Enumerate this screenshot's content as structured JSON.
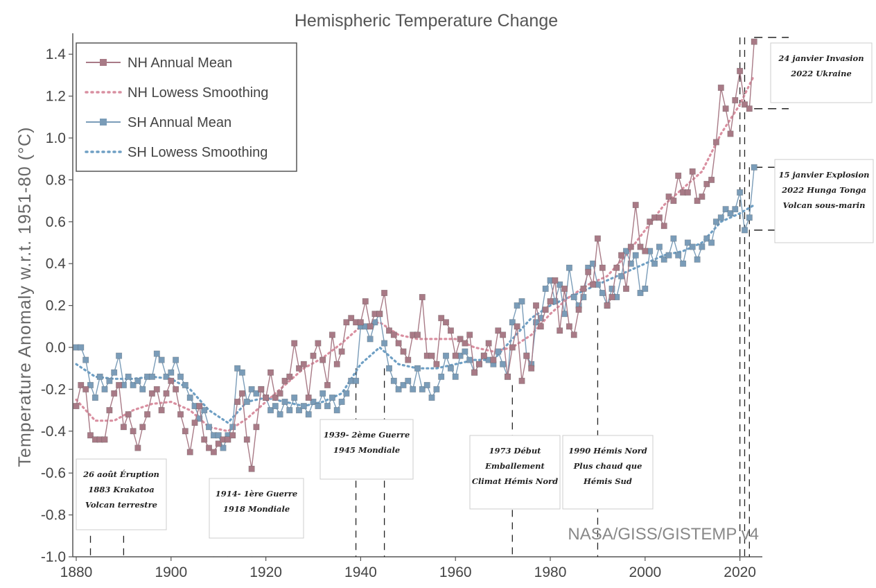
{
  "chart_data": {
    "type": "line",
    "title": "Hemispheric Temperature Change",
    "xlabel": "",
    "ylabel": "Temperature Anomaly w.r.t. 1951-80 (°C)",
    "xlim": [
      1880,
      2024
    ],
    "ylim": [
      -1.0,
      1.5
    ],
    "x_ticks": [
      "1880",
      "1900",
      "1920",
      "1940",
      "1960",
      "1980",
      "2000",
      "2020"
    ],
    "y_ticks": [
      "-1.0",
      "-0.8",
      "-0.6",
      "-0.4",
      "-0.2",
      "0.0",
      "0.2",
      "0.4",
      "0.6",
      "0.8",
      "1.0",
      "1.2",
      "1.4"
    ],
    "legend_position": "top-left",
    "credit": "NASA/GISS/GISTEMP v4",
    "series": [
      {
        "name": "NH Annual Mean",
        "color": "#a87a86",
        "style": "line-squares",
        "x": [
          1880,
          1881,
          1882,
          1883,
          1884,
          1885,
          1886,
          1887,
          1888,
          1889,
          1890,
          1891,
          1892,
          1893,
          1894,
          1895,
          1896,
          1897,
          1898,
          1899,
          1900,
          1901,
          1902,
          1903,
          1904,
          1905,
          1906,
          1907,
          1908,
          1909,
          1910,
          1911,
          1912,
          1913,
          1914,
          1915,
          1916,
          1917,
          1918,
          1919,
          1920,
          1921,
          1922,
          1923,
          1924,
          1925,
          1926,
          1927,
          1928,
          1929,
          1930,
          1931,
          1932,
          1933,
          1934,
          1935,
          1936,
          1937,
          1938,
          1939,
          1940,
          1941,
          1942,
          1943,
          1944,
          1945,
          1946,
          1947,
          1948,
          1949,
          1950,
          1951,
          1952,
          1953,
          1954,
          1955,
          1956,
          1957,
          1958,
          1959,
          1960,
          1961,
          1962,
          1963,
          1964,
          1965,
          1966,
          1967,
          1968,
          1969,
          1970,
          1971,
          1972,
          1973,
          1974,
          1975,
          1976,
          1977,
          1978,
          1979,
          1980,
          1981,
          1982,
          1983,
          1984,
          1985,
          1986,
          1987,
          1988,
          1989,
          1990,
          1991,
          1992,
          1993,
          1994,
          1995,
          1996,
          1997,
          1998,
          1999,
          2000,
          2001,
          2002,
          2003,
          2004,
          2005,
          2006,
          2007,
          2008,
          2009,
          2010,
          2011,
          2012,
          2013,
          2014,
          2015,
          2016,
          2017,
          2018,
          2019,
          2020,
          2021,
          2022,
          2023
        ],
        "values": [
          -0.28,
          -0.18,
          -0.2,
          -0.42,
          -0.44,
          -0.44,
          -0.44,
          -0.3,
          -0.22,
          -0.18,
          -0.38,
          -0.32,
          -0.4,
          -0.48,
          -0.38,
          -0.32,
          -0.22,
          -0.2,
          -0.3,
          -0.22,
          -0.16,
          -0.2,
          -0.32,
          -0.4,
          -0.5,
          -0.36,
          -0.28,
          -0.44,
          -0.48,
          -0.5,
          -0.46,
          -0.44,
          -0.44,
          -0.42,
          -0.26,
          -0.22,
          -0.44,
          -0.58,
          -0.38,
          -0.2,
          -0.24,
          -0.12,
          -0.24,
          -0.22,
          -0.16,
          -0.14,
          0.02,
          -0.1,
          -0.08,
          -0.24,
          -0.04,
          0.02,
          -0.06,
          -0.18,
          0.06,
          -0.08,
          -0.02,
          0.12,
          0.14,
          0.12,
          0.12,
          0.22,
          0.1,
          0.16,
          0.16,
          0.26,
          0.08,
          0.06,
          0.02,
          -0.02,
          -0.06,
          0.06,
          0.06,
          0.24,
          -0.04,
          -0.04,
          -0.08,
          0.14,
          0.12,
          0.08,
          -0.04,
          0.04,
          0.02,
          0.06,
          -0.12,
          -0.08,
          -0.04,
          0.02,
          -0.06,
          0.08,
          0.06,
          -0.14,
          0.0,
          0.1,
          -0.16,
          -0.04,
          -0.1,
          0.2,
          0.1,
          0.18,
          0.22,
          0.32,
          0.08,
          0.28,
          0.1,
          0.06,
          0.18,
          0.28,
          0.36,
          0.3,
          0.52,
          0.38,
          0.2,
          0.24,
          0.38,
          0.44,
          0.28,
          0.48,
          0.68,
          0.48,
          0.46,
          0.6,
          0.62,
          0.62,
          0.58,
          0.72,
          0.7,
          0.82,
          0.74,
          0.74,
          0.84,
          0.7,
          0.72,
          0.78,
          0.8,
          0.98,
          1.24,
          1.14,
          1.02,
          1.18,
          1.32,
          1.16,
          1.14,
          1.46
        ]
      },
      {
        "name": "NH Lowess Smoothing",
        "color": "#d98fa0",
        "style": "dotted",
        "x": [
          1880,
          1884,
          1888,
          1892,
          1896,
          1900,
          1904,
          1908,
          1912,
          1916,
          1920,
          1924,
          1928,
          1932,
          1936,
          1940,
          1944,
          1948,
          1952,
          1956,
          1960,
          1964,
          1968,
          1972,
          1976,
          1980,
          1984,
          1988,
          1992,
          1996,
          2000,
          2004,
          2008,
          2012,
          2016,
          2020,
          2023
        ],
        "values": [
          -0.25,
          -0.35,
          -0.35,
          -0.3,
          -0.27,
          -0.26,
          -0.3,
          -0.38,
          -0.4,
          -0.34,
          -0.26,
          -0.18,
          -0.1,
          -0.05,
          0.02,
          0.1,
          0.12,
          0.06,
          0.04,
          0.04,
          0.04,
          0.0,
          -0.02,
          0.0,
          0.06,
          0.16,
          0.24,
          0.3,
          0.34,
          0.44,
          0.56,
          0.68,
          0.76,
          0.84,
          1.02,
          1.16,
          1.3
        ]
      },
      {
        "name": "SH Annual Mean",
        "color": "#7a9cb8",
        "style": "line-squares",
        "x": [
          1880,
          1881,
          1882,
          1883,
          1884,
          1885,
          1886,
          1887,
          1888,
          1889,
          1890,
          1891,
          1892,
          1893,
          1894,
          1895,
          1896,
          1897,
          1898,
          1899,
          1900,
          1901,
          1902,
          1903,
          1904,
          1905,
          1906,
          1907,
          1908,
          1909,
          1910,
          1911,
          1912,
          1913,
          1914,
          1915,
          1916,
          1917,
          1918,
          1919,
          1920,
          1921,
          1922,
          1923,
          1924,
          1925,
          1926,
          1927,
          1928,
          1929,
          1930,
          1931,
          1932,
          1933,
          1934,
          1935,
          1936,
          1937,
          1938,
          1939,
          1940,
          1941,
          1942,
          1943,
          1944,
          1945,
          1946,
          1947,
          1948,
          1949,
          1950,
          1951,
          1952,
          1953,
          1954,
          1955,
          1956,
          1957,
          1958,
          1959,
          1960,
          1961,
          1962,
          1963,
          1964,
          1965,
          1966,
          1967,
          1968,
          1969,
          1970,
          1971,
          1972,
          1973,
          1974,
          1975,
          1976,
          1977,
          1978,
          1979,
          1980,
          1981,
          1982,
          1983,
          1984,
          1985,
          1986,
          1987,
          1988,
          1989,
          1990,
          1991,
          1992,
          1993,
          1994,
          1995,
          1996,
          1997,
          1998,
          1999,
          2000,
          2001,
          2002,
          2003,
          2004,
          2005,
          2006,
          2007,
          2008,
          2009,
          2010,
          2011,
          2012,
          2013,
          2014,
          2015,
          2016,
          2017,
          2018,
          2019,
          2020,
          2021,
          2022,
          2023
        ],
        "values": [
          0.0,
          0.0,
          -0.06,
          -0.18,
          -0.24,
          -0.14,
          -0.2,
          -0.16,
          -0.12,
          -0.04,
          -0.18,
          -0.14,
          -0.18,
          -0.16,
          -0.2,
          -0.14,
          -0.14,
          -0.03,
          -0.06,
          -0.14,
          -0.12,
          -0.06,
          -0.14,
          -0.18,
          -0.24,
          -0.28,
          -0.34,
          -0.3,
          -0.38,
          -0.42,
          -0.42,
          -0.48,
          -0.42,
          -0.38,
          -0.1,
          -0.12,
          -0.26,
          -0.2,
          -0.22,
          -0.2,
          -0.24,
          -0.3,
          -0.28,
          -0.32,
          -0.26,
          -0.3,
          -0.24,
          -0.3,
          -0.28,
          -0.32,
          -0.26,
          -0.28,
          -0.22,
          -0.28,
          -0.24,
          -0.3,
          -0.26,
          -0.22,
          -0.16,
          -0.16,
          0.1,
          0.1,
          0.04,
          0.12,
          0.16,
          0.02,
          -0.1,
          -0.16,
          -0.2,
          -0.18,
          -0.16,
          -0.2,
          -0.1,
          -0.2,
          -0.18,
          -0.24,
          -0.2,
          -0.14,
          -0.04,
          -0.1,
          -0.14,
          -0.04,
          -0.02,
          -0.06,
          -0.12,
          -0.08,
          -0.04,
          -0.06,
          -0.08,
          -0.02,
          -0.08,
          -0.14,
          0.12,
          0.2,
          0.22,
          -0.04,
          -0.08,
          0.12,
          0.14,
          0.28,
          0.32,
          0.22,
          0.3,
          0.16,
          0.38,
          0.24,
          0.2,
          0.24,
          0.38,
          0.4,
          0.3,
          0.26,
          0.2,
          0.28,
          0.24,
          0.34,
          0.46,
          0.4,
          0.44,
          0.26,
          0.28,
          0.46,
          0.4,
          0.48,
          0.42,
          0.44,
          0.52,
          0.44,
          0.4,
          0.5,
          0.48,
          0.42,
          0.48,
          0.52,
          0.5,
          0.6,
          0.62,
          0.66,
          0.64,
          0.66,
          0.74,
          0.56,
          0.62,
          0.86
        ]
      },
      {
        "name": "SH Lowess Smoothing",
        "color": "#6e9fc4",
        "style": "dotted",
        "x": [
          1880,
          1884,
          1888,
          1892,
          1896,
          1900,
          1904,
          1908,
          1912,
          1916,
          1920,
          1924,
          1928,
          1932,
          1936,
          1940,
          1944,
          1948,
          1952,
          1956,
          1960,
          1964,
          1968,
          1972,
          1976,
          1980,
          1984,
          1988,
          1992,
          1996,
          2000,
          2004,
          2008,
          2012,
          2016,
          2020,
          2023
        ],
        "values": [
          -0.08,
          -0.14,
          -0.15,
          -0.15,
          -0.14,
          -0.15,
          -0.2,
          -0.3,
          -0.36,
          -0.26,
          -0.24,
          -0.26,
          -0.28,
          -0.26,
          -0.22,
          -0.08,
          0.0,
          -0.08,
          -0.1,
          -0.1,
          -0.08,
          -0.06,
          -0.06,
          0.04,
          0.14,
          0.2,
          0.24,
          0.28,
          0.32,
          0.36,
          0.4,
          0.44,
          0.46,
          0.5,
          0.6,
          0.64,
          0.68
        ]
      }
    ]
  },
  "annotations": [
    {
      "key": "krakatoa",
      "year": 1883,
      "lines": [
        "26 août    Éruption",
        "1883     Krakatoa",
        "Volcan terrestre"
      ]
    },
    {
      "key": "ww1",
      "year": 1914,
      "lines": [
        "1914-        1ère  Guerre",
        "1918        Mondiale"
      ]
    },
    {
      "key": "ww2",
      "year": 1939,
      "lines": [
        "1939-       2ème Guerre",
        "1945        Mondiale"
      ]
    },
    {
      "key": "1973",
      "year": 1973,
      "lines": [
        "1973       Début",
        "Emballement",
        "Climat Hémis Nord"
      ]
    },
    {
      "key": "1990",
      "year": 1990,
      "lines": [
        "1990     Hémis Nord",
        "Plus chaud que",
        "Hémis Sud"
      ]
    },
    {
      "key": "ukraine",
      "year": 2022,
      "lines": [
        "24 janvier  Invasion",
        "2022      Ukraine"
      ]
    },
    {
      "key": "tonga",
      "year": 2022,
      "lines": [
        "15 janvier Explosion",
        "2022 Hunga Tonga",
        "Volcan sous-marin"
      ]
    }
  ]
}
